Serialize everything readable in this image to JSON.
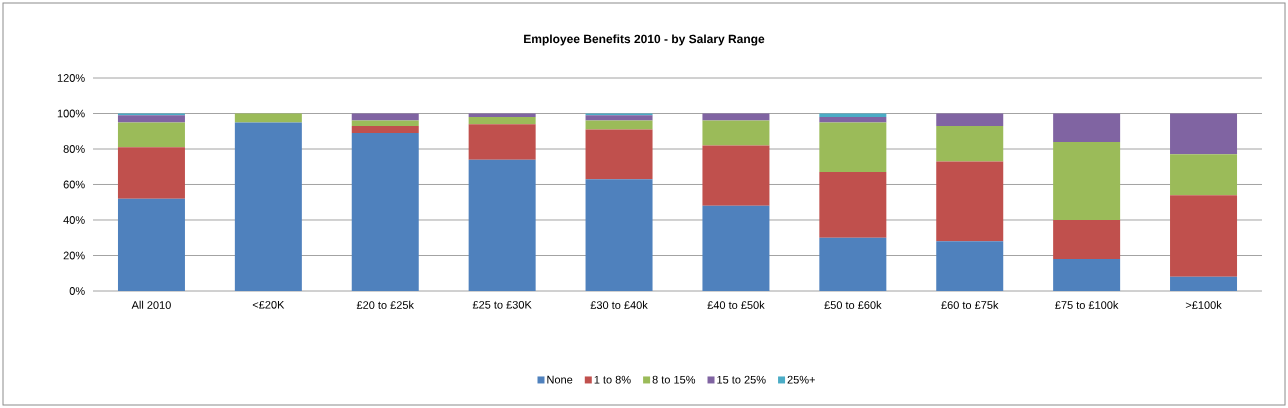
{
  "chart_data": {
    "type": "bar",
    "title": "Employee Benefits 2010 - by Salary Range",
    "stacked": true,
    "grid": "y",
    "legend": "bottom",
    "categories": [
      "All 2010",
      "<£20K",
      "£20 to £25k",
      "£25 to £30K",
      "£30 to £40k",
      "£40 to £50k",
      "£50 to £60k",
      "£60 to £75k",
      "£75 to £100k",
      ">£100k"
    ],
    "ylim": [
      0,
      120
    ],
    "yticks": [
      {
        "value": 0,
        "label": "0%"
      },
      {
        "value": 20,
        "label": "20%"
      },
      {
        "value": 40,
        "label": "40%"
      },
      {
        "value": 60,
        "label": "60%"
      },
      {
        "value": 80,
        "label": "80%"
      },
      {
        "value": 100,
        "label": "100%"
      },
      {
        "value": 120,
        "label": "120%"
      }
    ],
    "series": [
      {
        "name": "None",
        "color": "#4f81bd",
        "values": [
          52,
          95,
          89,
          74,
          63,
          48,
          30,
          28,
          18,
          8
        ]
      },
      {
        "name": "1 to 8%",
        "color": "#c0504d",
        "values": [
          29,
          0,
          4,
          20,
          28,
          34,
          37,
          45,
          22,
          46
        ]
      },
      {
        "name": "8 to 15%",
        "color": "#9bbb59",
        "values": [
          14,
          5,
          3,
          4,
          5,
          14,
          28,
          20,
          44,
          23
        ]
      },
      {
        "name": "15 to 25%",
        "color": "#8064a2",
        "values": [
          4,
          0,
          4,
          2,
          3,
          4,
          3,
          7,
          16,
          23
        ]
      },
      {
        "name": "25%+",
        "color": "#4bacc6",
        "values": [
          1,
          0,
          0,
          0,
          1,
          0,
          2,
          0,
          0,
          0
        ]
      }
    ]
  }
}
